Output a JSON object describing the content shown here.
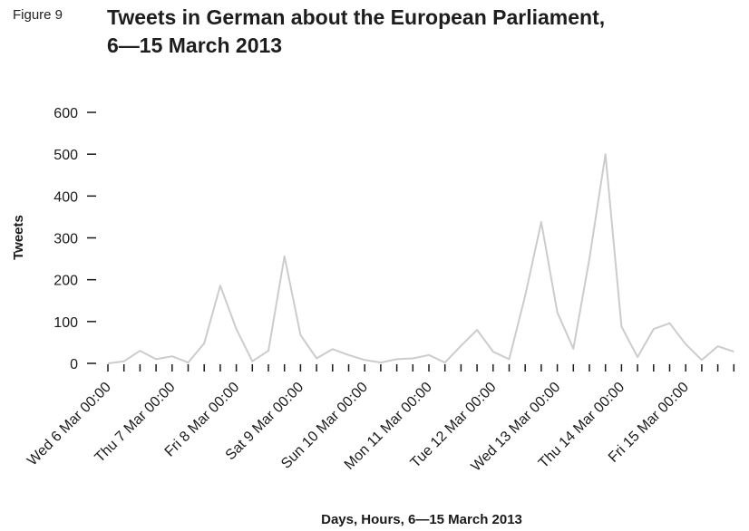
{
  "figure_label": "Figure 9",
  "title_line1": "Tweets in German about the European Parliament,",
  "title_line2": "6—15 March 2013",
  "chart_data": {
    "type": "line",
    "xlabel": "Days, Hours, 6—15 March 2013",
    "ylabel": "Tweets",
    "ylim": [
      0,
      600
    ],
    "y_ticks": [
      0,
      100,
      200,
      300,
      400,
      500,
      600
    ],
    "x_tick_labels": [
      "Wed 6 Mar 00:00",
      "Thu 7 Mar 00:00",
      "Fri 8 Mar 00:00",
      "Sat 9 Mar 00:00",
      "Sun 10 Mar 00:00",
      "Mon 11 Mar 00:00",
      "Tue 12 Mar 00:00",
      "Wed 13 Mar 00:00",
      "Thu 14 Mar 00:00",
      "Fri 15 Mar 00:00"
    ],
    "ticks_per_day": 4,
    "x_unit": "6-hour intervals from Wed 6 Mar 00:00",
    "values": [
      0,
      5,
      30,
      10,
      17,
      2,
      48,
      186,
      82,
      5,
      30,
      256,
      68,
      12,
      34,
      20,
      8,
      2,
      10,
      12,
      20,
      2,
      42,
      80,
      28,
      10,
      162,
      338,
      122,
      35,
      250,
      500,
      88,
      15,
      82,
      96,
      46,
      8,
      41,
      28
    ],
    "series_color": "#cccccc",
    "grid": false
  }
}
